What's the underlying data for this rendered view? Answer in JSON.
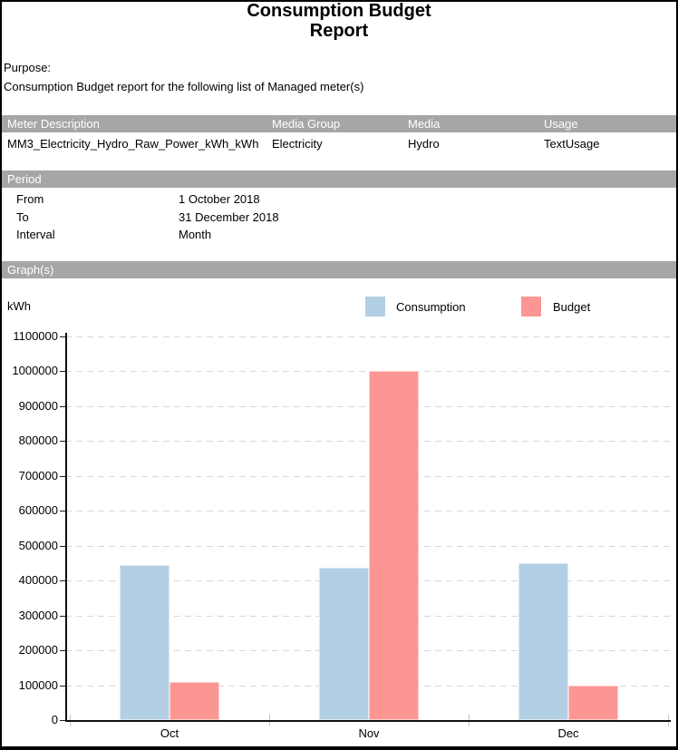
{
  "report": {
    "title": "Consumption Budget Report",
    "purpose_label": "Purpose:",
    "purpose_text": "Consumption Budget report for the following list of Managed meter(s)"
  },
  "meter_table": {
    "columns": [
      "Meter Description",
      "Media Group",
      "Media",
      "Usage"
    ],
    "rows": [
      {
        "meter_description": "MM3_Electricity_Hydro_Raw_Power_kWh_kWh",
        "media_group": "Electricity",
        "media": "Hydro",
        "usage": "TextUsage"
      }
    ]
  },
  "period": {
    "section_label": "Period",
    "fields": [
      {
        "label": "From",
        "value": "1 October 2018"
      },
      {
        "label": "To",
        "value": "31 December 2018"
      },
      {
        "label": "Interval",
        "value": "Month"
      }
    ]
  },
  "graphs": {
    "section_label": "Graph(s)",
    "unit_label": "kWh"
  },
  "colors": {
    "section_header_bg": "#a6a6a6",
    "section_header_text": "#ffffff",
    "consumption": "#b3cfe4",
    "budget": "#fc9693",
    "gridline": "#d8d8d8",
    "axis": "#111111"
  },
  "chart_data": {
    "type": "bar",
    "title": "",
    "unit": "kWh",
    "categories": [
      "Oct",
      "Nov",
      "Dec"
    ],
    "series": [
      {
        "name": "Consumption",
        "color": "#b3cfe4",
        "values": [
          445000,
          437000,
          450000
        ]
      },
      {
        "name": "Budget",
        "color": "#fc9693",
        "values": [
          110000,
          1000000,
          100000
        ]
      }
    ],
    "ylim": [
      0,
      1100000
    ],
    "ytick_step": 100000,
    "ytick_labels": [
      "0",
      "100000",
      "200000",
      "300000",
      "400000",
      "500000",
      "600000",
      "700000",
      "800000",
      "900000",
      "1000000",
      "1100000"
    ],
    "grid": "horizontal-dashed",
    "legend_position": "top"
  }
}
